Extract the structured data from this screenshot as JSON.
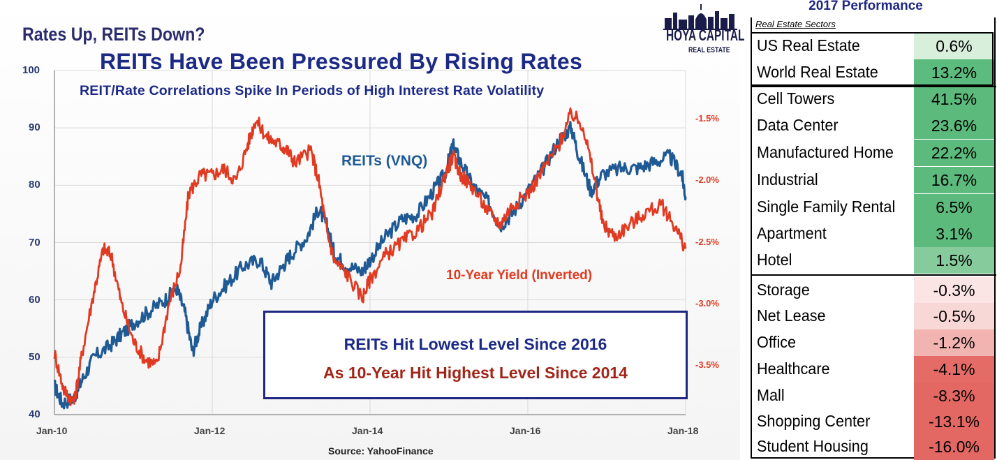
{
  "chart": {
    "small_title": "Rates Up, REITs Down?",
    "title": "REITs Have Been Pressured By Rising Rates",
    "subtitle": "REIT/Rate Correlations Spike In Periods of High Interest Rate Volatility",
    "logo": {
      "name": "HOYA CAPITAL",
      "tagline": "REAL ESTATE",
      "icon": "capitol-skyline-icon"
    },
    "label_reits": "REITs (VNQ)",
    "label_yield": "10-Year Yield (Inverted)",
    "callout": {
      "line1": "REITs Hit Lowest Level Since 2016",
      "line2": "As 10-Year Hit Highest Level Since 2014"
    },
    "source": "Source: YahooFinance",
    "colors": {
      "reits": "#1f5a95",
      "yield": "#e03b22",
      "title": "#1c2a86",
      "callout_red": "#a12518"
    }
  },
  "chart_data": {
    "type": "line",
    "x_ticks": [
      "Jan-10",
      "Jan-12",
      "Jan-14",
      "Jan-16",
      "Jan-18"
    ],
    "x_range": [
      2010.0,
      2018.0
    ],
    "y_left_ticks": [
      "100",
      "90",
      "80",
      "70",
      "60",
      "50",
      "40"
    ],
    "y_left_range": [
      40,
      100
    ],
    "y_right_ticks": [
      "-1.5%",
      "-2.0%",
      "-2.5%",
      "-3.0%",
      "-3.5%"
    ],
    "y_right_range": [
      -3.9,
      -1.1
    ],
    "grid": true,
    "series": [
      {
        "name": "REITs (VNQ)",
        "axis": "left",
        "points": [
          [
            2010.0,
            45
          ],
          [
            2010.1,
            42
          ],
          [
            2010.25,
            43
          ],
          [
            2010.35,
            46
          ],
          [
            2010.5,
            50
          ],
          [
            2010.7,
            52
          ],
          [
            2010.85,
            54
          ],
          [
            2011.0,
            56
          ],
          [
            2011.2,
            58
          ],
          [
            2011.4,
            60
          ],
          [
            2011.55,
            62
          ],
          [
            2011.65,
            58
          ],
          [
            2011.75,
            51
          ],
          [
            2011.85,
            55
          ],
          [
            2012.0,
            60
          ],
          [
            2012.2,
            63
          ],
          [
            2012.4,
            66
          ],
          [
            2012.6,
            67
          ],
          [
            2012.75,
            63
          ],
          [
            2012.9,
            66
          ],
          [
            2013.0,
            68
          ],
          [
            2013.2,
            71
          ],
          [
            2013.35,
            76
          ],
          [
            2013.45,
            73
          ],
          [
            2013.55,
            68
          ],
          [
            2013.7,
            66
          ],
          [
            2013.9,
            65
          ],
          [
            2014.0,
            67
          ],
          [
            2014.2,
            71
          ],
          [
            2014.4,
            74
          ],
          [
            2014.6,
            75
          ],
          [
            2014.8,
            79
          ],
          [
            2014.95,
            82
          ],
          [
            2015.05,
            87
          ],
          [
            2015.15,
            84
          ],
          [
            2015.3,
            80
          ],
          [
            2015.5,
            77
          ],
          [
            2015.65,
            73
          ],
          [
            2015.8,
            75
          ],
          [
            2016.0,
            79
          ],
          [
            2016.2,
            83
          ],
          [
            2016.4,
            88
          ],
          [
            2016.55,
            90
          ],
          [
            2016.65,
            85
          ],
          [
            2016.8,
            79
          ],
          [
            2016.95,
            82
          ],
          [
            2017.2,
            83
          ],
          [
            2017.4,
            83
          ],
          [
            2017.6,
            84
          ],
          [
            2017.8,
            85
          ],
          [
            2017.95,
            82
          ],
          [
            2018.0,
            78
          ]
        ]
      },
      {
        "name": "10-Year Yield (Inverted)",
        "axis": "right",
        "points": [
          [
            2010.0,
            -3.4
          ],
          [
            2010.12,
            -3.7
          ],
          [
            2010.25,
            -3.8
          ],
          [
            2010.35,
            -3.4
          ],
          [
            2010.5,
            -2.9
          ],
          [
            2010.62,
            -2.55
          ],
          [
            2010.72,
            -2.6
          ],
          [
            2010.85,
            -3.0
          ],
          [
            2011.0,
            -3.3
          ],
          [
            2011.15,
            -3.45
          ],
          [
            2011.3,
            -3.5
          ],
          [
            2011.45,
            -3.0
          ],
          [
            2011.6,
            -2.7
          ],
          [
            2011.7,
            -2.1
          ],
          [
            2011.85,
            -1.95
          ],
          [
            2012.0,
            -1.95
          ],
          [
            2012.15,
            -1.9
          ],
          [
            2012.3,
            -2.0
          ],
          [
            2012.45,
            -1.7
          ],
          [
            2012.55,
            -1.5
          ],
          [
            2012.7,
            -1.65
          ],
          [
            2012.85,
            -1.7
          ],
          [
            2012.95,
            -1.75
          ],
          [
            2013.05,
            -1.85
          ],
          [
            2013.25,
            -1.75
          ],
          [
            2013.35,
            -2.0
          ],
          [
            2013.45,
            -2.4
          ],
          [
            2013.55,
            -2.65
          ],
          [
            2013.7,
            -2.75
          ],
          [
            2013.9,
            -2.95
          ],
          [
            2014.0,
            -2.8
          ],
          [
            2014.2,
            -2.6
          ],
          [
            2014.4,
            -2.5
          ],
          [
            2014.6,
            -2.4
          ],
          [
            2014.8,
            -2.25
          ],
          [
            2014.95,
            -1.95
          ],
          [
            2015.05,
            -1.8
          ],
          [
            2015.15,
            -1.95
          ],
          [
            2015.3,
            -2.05
          ],
          [
            2015.5,
            -2.25
          ],
          [
            2015.65,
            -2.35
          ],
          [
            2015.8,
            -2.2
          ],
          [
            2016.0,
            -2.1
          ],
          [
            2016.2,
            -1.9
          ],
          [
            2016.4,
            -1.7
          ],
          [
            2016.55,
            -1.45
          ],
          [
            2016.7,
            -1.55
          ],
          [
            2016.85,
            -2.0
          ],
          [
            2016.95,
            -2.35
          ],
          [
            2017.1,
            -2.45
          ],
          [
            2017.3,
            -2.35
          ],
          [
            2017.5,
            -2.25
          ],
          [
            2017.7,
            -2.2
          ],
          [
            2017.85,
            -2.35
          ],
          [
            2018.0,
            -2.55
          ]
        ]
      }
    ]
  },
  "performance": {
    "title": "2017 Performance",
    "column_header": "Real Estate Sectors",
    "rows": [
      {
        "name": "US Real Estate",
        "value": "0.6%",
        "color": "#d8efdc"
      },
      {
        "name": "World Real Estate",
        "value": "13.2%",
        "color": "#5cbb7e"
      },
      {
        "name": "Cell Towers",
        "value": "41.5%",
        "color": "#5bba7c"
      },
      {
        "name": "Data Center",
        "value": "23.6%",
        "color": "#5bba7c"
      },
      {
        "name": "Manufactured Home",
        "value": "22.2%",
        "color": "#5bba7c"
      },
      {
        "name": "Industrial",
        "value": "16.7%",
        "color": "#5bba7c"
      },
      {
        "name": "Single Family Rental",
        "value": "6.5%",
        "color": "#5bba7c"
      },
      {
        "name": "Apartment",
        "value": "3.1%",
        "color": "#5bba7c"
      },
      {
        "name": "Hotel",
        "value": "1.5%",
        "color": "#85cb9c"
      },
      {
        "name": "Storage",
        "value": "-0.3%",
        "color": "#fbe5e4"
      },
      {
        "name": "Net Lease",
        "value": "-0.5%",
        "color": "#f8d8d6"
      },
      {
        "name": "Office",
        "value": "-1.2%",
        "color": "#f2b4b0"
      },
      {
        "name": "Healthcare",
        "value": "-4.1%",
        "color": "#e56c66"
      },
      {
        "name": "Mall",
        "value": "-8.3%",
        "color": "#e36863"
      },
      {
        "name": "Shopping Center",
        "value": "-13.1%",
        "color": "#e36863"
      },
      {
        "name": "Student Housing",
        "value": "-16.0%",
        "color": "#e36863"
      }
    ]
  }
}
